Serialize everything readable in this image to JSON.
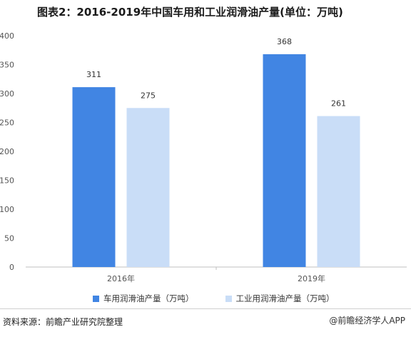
{
  "title": "图表2：2016-2019年中国车用和工业润滑油产量(单位：万吨)",
  "footer": {
    "source": "资料来源：前瞻产业研究院整理",
    "watermark": "@前瞻经济学人APP"
  },
  "colors": {
    "series1": "#4185e3",
    "series2": "#c9ddf7",
    "axis": "#bfbfbf",
    "tick": "#555555"
  },
  "chart_data": {
    "type": "bar",
    "categories": [
      "2016年",
      "2019年"
    ],
    "series": [
      {
        "name": "车用润滑油产量（万吨）",
        "values": [
          311,
          368
        ]
      },
      {
        "name": "工业用润滑油产量（万吨）",
        "values": [
          275,
          261
        ]
      }
    ],
    "ylim": [
      0,
      400
    ],
    "yticks": [
      0,
      50,
      100,
      150,
      200,
      250,
      300,
      350,
      400
    ],
    "xlabel": "",
    "ylabel": "",
    "grid": false,
    "legend": "bottom"
  }
}
